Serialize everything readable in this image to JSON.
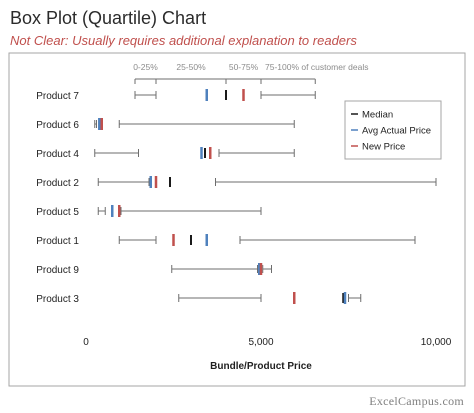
{
  "title": "Box Plot (Quartile) Chart",
  "subtitle": "Not Clear: Usually requires additional explanation to readers",
  "footer": "ExcelCampus.com",
  "colors": {
    "median": "#1a1a1a",
    "avg": "#4f81bd",
    "new": "#c0504d",
    "whisker": "#6d6d6d",
    "frame": "#a6a6a6",
    "quartile_text": "#8c8c8c"
  },
  "chart_data": {
    "type": "box",
    "xlabel": "Bundle/Product Price",
    "xlim": [
      0,
      10000
    ],
    "xticks": [
      0,
      5000,
      10000
    ],
    "xtick_labels": [
      "0",
      "5,000",
      "10,000"
    ],
    "grid": false,
    "legend_position": "right",
    "quartile_labels": [
      "0-25%",
      "25-50%",
      "50-75%",
      "75-100% of customer deals"
    ],
    "quartile_bounds": [
      1400,
      2000,
      4000,
      5000,
      6550
    ],
    "series_legend": [
      {
        "name": "Median",
        "color": "#1a1a1a"
      },
      {
        "name": "Avg Actual Price",
        "color": "#4f81bd"
      },
      {
        "name": "New Price",
        "color": "#c0504d"
      }
    ],
    "products": [
      {
        "name": "Product 7",
        "min": 1400,
        "q1": 2000,
        "median": 4000,
        "q3": 5000,
        "max": 6550,
        "avg": 3450,
        "new_price": 4500
      },
      {
        "name": "Product 6",
        "min": 250,
        "q1": 300,
        "median": 420,
        "q3": 950,
        "max": 5950,
        "avg": 380,
        "new_price": 450
      },
      {
        "name": "Product 4",
        "min": 250,
        "q1": 1500,
        "median": 3400,
        "q3": 3800,
        "max": 5950,
        "avg": 3300,
        "new_price": 3550
      },
      {
        "name": "Product 2",
        "min": 350,
        "q1": 1800,
        "median": 2400,
        "q3": 3700,
        "max": 10000,
        "avg": 1850,
        "new_price": 2000
      },
      {
        "name": "Product 5",
        "min": 350,
        "q1": 550,
        "median": 950,
        "q3": 1000,
        "max": 5000,
        "avg": 750,
        "new_price": 950
      },
      {
        "name": "Product 1",
        "min": 950,
        "q1": 2000,
        "median": 3000,
        "q3": 4400,
        "max": 9400,
        "avg": 3450,
        "new_price": 2500
      },
      {
        "name": "Product 9",
        "min": 2450,
        "q1": 4900,
        "median": 4950,
        "q3": 5050,
        "max": 5300,
        "avg": 4950,
        "new_price": 5000
      },
      {
        "name": "Product 3",
        "min": 2650,
        "q1": 5000,
        "median": 7350,
        "q3": 7500,
        "max": 7850,
        "avg": 7400,
        "new_price": 5950
      }
    ]
  }
}
